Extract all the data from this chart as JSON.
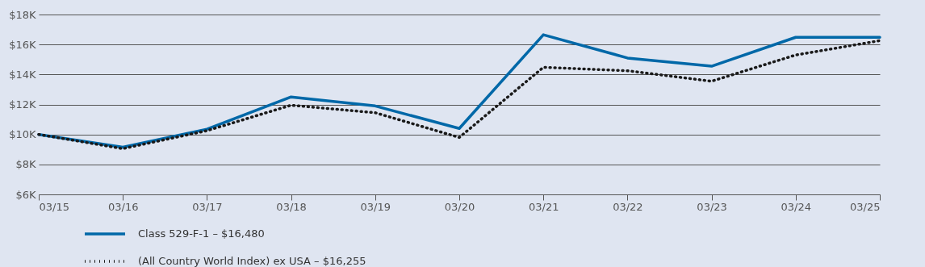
{
  "chart_data": {
    "type": "line",
    "categories": [
      "03/15",
      "03/16",
      "03/17",
      "03/18",
      "03/19",
      "03/20",
      "03/21",
      "03/22",
      "03/23",
      "03/24",
      "03/25"
    ],
    "series": [
      {
        "name": "Class 529-F-1 – $16,480",
        "color": "#0068a8",
        "line_style": "solid",
        "values": [
          10000,
          9150,
          10350,
          12500,
          11900,
          10400,
          16650,
          15100,
          14550,
          16480,
          16480
        ]
      },
      {
        "name": "(All Country World Index) ex USA – $16,255",
        "color": "#1a1a1a",
        "line_style": "dotted",
        "values": [
          10000,
          9050,
          10250,
          11950,
          11450,
          9800,
          14480,
          14250,
          13550,
          15300,
          16255
        ]
      }
    ],
    "ylim": [
      6000,
      18000
    ],
    "yticks": [
      {
        "value": 6000,
        "label": "$6K"
      },
      {
        "value": 8000,
        "label": "$8K"
      },
      {
        "value": 10000,
        "label": "$10K"
      },
      {
        "value": 12000,
        "label": "$12K"
      },
      {
        "value": 14000,
        "label": "$14K"
      },
      {
        "value": 16000,
        "label": "$16K"
      },
      {
        "value": 18000,
        "label": "$18K"
      }
    ],
    "grid": "y",
    "legend": "bottom left"
  }
}
